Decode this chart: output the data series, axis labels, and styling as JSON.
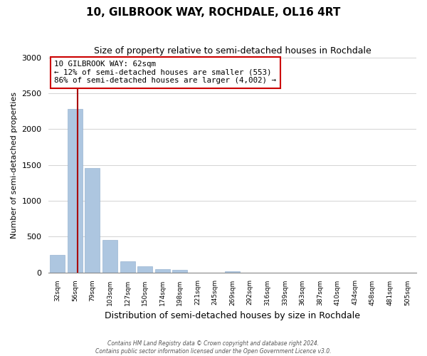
{
  "title": "10, GILBROOK WAY, ROCHDALE, OL16 4RT",
  "subtitle": "Size of property relative to semi-detached houses in Rochdale",
  "xlabel": "Distribution of semi-detached houses by size in Rochdale",
  "ylabel": "Number of semi-detached properties",
  "bin_labels": [
    "32sqm",
    "56sqm",
    "79sqm",
    "103sqm",
    "127sqm",
    "150sqm",
    "174sqm",
    "198sqm",
    "221sqm",
    "245sqm",
    "269sqm",
    "292sqm",
    "316sqm",
    "339sqm",
    "363sqm",
    "387sqm",
    "410sqm",
    "434sqm",
    "458sqm",
    "481sqm",
    "505sqm"
  ],
  "bar_heights": [
    240,
    2280,
    1460,
    450,
    155,
    90,
    45,
    40,
    0,
    0,
    20,
    0,
    0,
    0,
    0,
    0,
    0,
    0,
    0,
    0,
    0
  ],
  "bar_color": "#adc6e0",
  "property_line_color": "#aa0000",
  "ylim": [
    0,
    3000
  ],
  "yticks": [
    0,
    500,
    1000,
    1500,
    2000,
    2500,
    3000
  ],
  "annotation_line1": "10 GILBROOK WAY: 62sqm",
  "annotation_line2": "← 12% of semi-detached houses are smaller (553)",
  "annotation_line3": "86% of semi-detached houses are larger (4,002) →",
  "annotation_box_edge": "#cc0000",
  "footer1": "Contains HM Land Registry data © Crown copyright and database right 2024.",
  "footer2": "Contains public sector information licensed under the Open Government Licence v3.0."
}
